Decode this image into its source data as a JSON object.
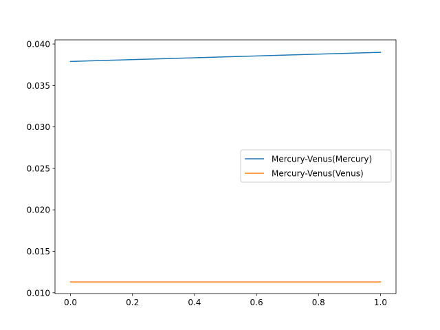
{
  "chart_data": {
    "type": "line",
    "title": "",
    "xlabel": "",
    "ylabel": "",
    "xlim": [
      -0.05,
      1.05
    ],
    "ylim": [
      0.0099,
      0.0405
    ],
    "xticks": [
      0.0,
      0.2,
      0.4,
      0.6,
      0.8,
      1.0
    ],
    "xtick_labels": [
      "0.0",
      "0.2",
      "0.4",
      "0.6",
      "0.8",
      "1.0"
    ],
    "yticks": [
      0.01,
      0.015,
      0.02,
      0.025,
      0.03,
      0.035,
      0.04
    ],
    "ytick_labels": [
      "0.010",
      "0.015",
      "0.020",
      "0.025",
      "0.030",
      "0.035",
      "0.040"
    ],
    "grid": false,
    "legend_position": "center-right",
    "series": [
      {
        "name": "Mercury-Venus(Mercury)",
        "color": "#1f77b4",
        "x": [
          0.0,
          1.0
        ],
        "y": [
          0.0379,
          0.039
        ]
      },
      {
        "name": "Mercury-Venus(Venus)",
        "color": "#ff7f0e",
        "x": [
          0.0,
          1.0
        ],
        "y": [
          0.0113,
          0.0113
        ]
      }
    ]
  }
}
